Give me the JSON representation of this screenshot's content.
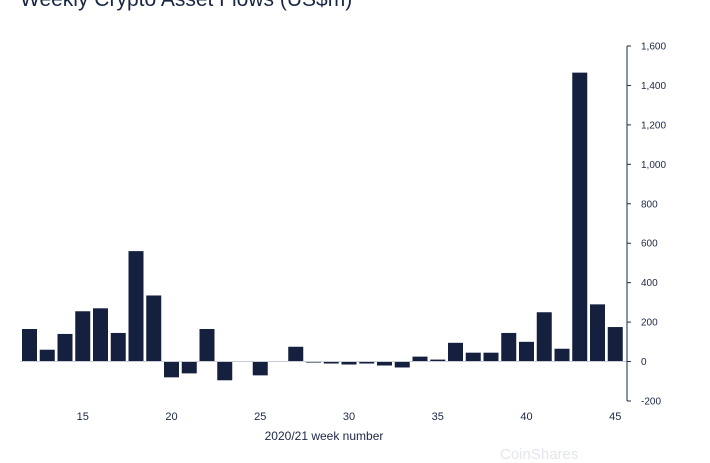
{
  "chart_data": {
    "type": "bar",
    "title": "Weekly Crypto Asset Flows (US$m)",
    "xlabel": "2020/21 week number",
    "ylabel": "",
    "x_ticks": [
      15,
      20,
      25,
      30,
      35,
      40,
      45
    ],
    "y_ticks": [
      -200,
      0,
      200,
      400,
      600,
      800,
      1000,
      1200,
      1400,
      1600
    ],
    "y_tick_labels": [
      "-200",
      "0",
      "200",
      "400",
      "600",
      "800",
      "1,000",
      "1,200",
      "1,400",
      "1,600"
    ],
    "ylim": [
      -200,
      1600
    ],
    "y_axis_side": "right",
    "bar_color": "#14203d",
    "x": [
      12,
      13,
      14,
      15,
      16,
      17,
      18,
      19,
      20,
      21,
      22,
      23,
      24,
      25,
      26,
      27,
      28,
      29,
      30,
      31,
      32,
      33,
      34,
      35,
      36,
      37,
      38,
      39,
      40,
      41,
      42,
      43,
      44,
      45
    ],
    "values": [
      165,
      60,
      140,
      255,
      270,
      145,
      560,
      335,
      -80,
      -60,
      165,
      -95,
      0,
      -70,
      0,
      75,
      -5,
      -10,
      -15,
      -10,
      -20,
      -30,
      25,
      10,
      95,
      45,
      45,
      145,
      100,
      250,
      65,
      1465,
      290,
      175
    ]
  },
  "watermark": "CoinShares"
}
